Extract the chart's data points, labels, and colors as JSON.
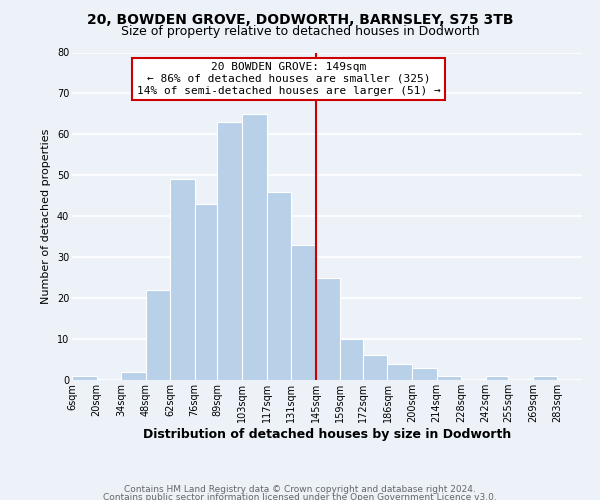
{
  "title": "20, BOWDEN GROVE, DODWORTH, BARNSLEY, S75 3TB",
  "subtitle": "Size of property relative to detached houses in Dodworth",
  "xlabel": "Distribution of detached houses by size in Dodworth",
  "ylabel": "Number of detached properties",
  "bar_labels": [
    "6sqm",
    "20sqm",
    "34sqm",
    "48sqm",
    "62sqm",
    "76sqm",
    "89sqm",
    "103sqm",
    "117sqm",
    "131sqm",
    "145sqm",
    "159sqm",
    "172sqm",
    "186sqm",
    "200sqm",
    "214sqm",
    "228sqm",
    "242sqm",
    "255sqm",
    "269sqm",
    "283sqm"
  ],
  "bar_values": [
    1,
    0,
    2,
    22,
    49,
    43,
    63,
    65,
    46,
    33,
    25,
    10,
    6,
    4,
    3,
    1,
    0,
    1,
    0,
    1,
    0
  ],
  "bar_edges": [
    6,
    20,
    34,
    48,
    62,
    76,
    89,
    103,
    117,
    131,
    145,
    159,
    172,
    186,
    200,
    214,
    228,
    242,
    255,
    269,
    283,
    297
  ],
  "bar_color": "#b8d0e8",
  "bar_edgecolor": "#ffffff",
  "property_line_x": 145,
  "property_line_color": "#cc0000",
  "annotation_line1": "20 BOWDEN GROVE: 149sqm",
  "annotation_line2": "← 86% of detached houses are smaller (325)",
  "annotation_line3": "14% of semi-detached houses are larger (51) →",
  "annotation_box_edgecolor": "#cc0000",
  "annotation_box_facecolor": "#ffffff",
  "ylim": [
    0,
    80
  ],
  "yticks": [
    0,
    10,
    20,
    30,
    40,
    50,
    60,
    70,
    80
  ],
  "background_color": "#edf2f9",
  "grid_color": "#ffffff",
  "footer_line1": "Contains HM Land Registry data © Crown copyright and database right 2024.",
  "footer_line2": "Contains public sector information licensed under the Open Government Licence v3.0.",
  "title_fontsize": 10,
  "subtitle_fontsize": 9,
  "xlabel_fontsize": 9,
  "ylabel_fontsize": 8,
  "tick_fontsize": 7,
  "annotation_fontsize": 8,
  "footer_fontsize": 6.5
}
